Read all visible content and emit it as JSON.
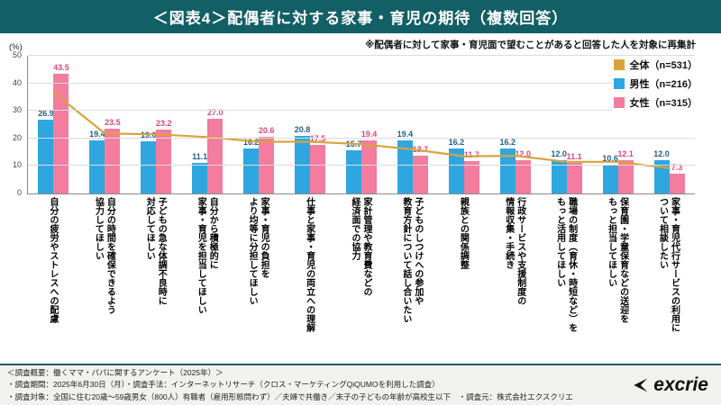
{
  "header": {
    "title": "＜図表4＞配偶者に対する家事・育児の期待（複数回答）"
  },
  "note": "※配偶者に対して家事・育児面で望むことがあると回答した人を対象に再集計",
  "y_axis": {
    "unit": "(%)",
    "ticks": [
      0,
      10,
      20,
      30,
      40,
      50
    ]
  },
  "legend": [
    {
      "label": "全体（n=531）",
      "color": "#d9a33c"
    },
    {
      "label": "男性（n=216）",
      "color": "#2ea7e0"
    },
    {
      "label": "女性（n=315）",
      "color": "#f47c9f"
    }
  ],
  "chart_data": {
    "type": "bar",
    "title": "＜図表4＞配偶者に対する家事・育児の期待（複数回答）",
    "ylabel": "(%)",
    "ylim": [
      0,
      50
    ],
    "grid": true,
    "legend_position": "top-right",
    "categories": [
      "自分の疲労やストレスへの配慮",
      "自分の時間を確保できるよう\n協力してほしい",
      "子どもの急な体調不良時に\n対応してほしい",
      "自分から積極的に\n家事・育児を担当してほしい",
      "家事・育児の負担を\nより均等に分担してほしい",
      "仕事と家事・育児の両立への理解",
      "家計管理や教育費などの\n経済面での協力",
      "子どものしつけへの参加や\n教育方針について話し合いたい",
      "親族との関係調整",
      "行政サービスや支援制度の\n情報収集・手続き",
      "職場の制度（育休・時短など）を\nもっと活用してほしい",
      "保育園・学童保育などの送迎を\nもっと担当してほしい",
      "家事・育児代行サービスの利用に\nついて相談したい"
    ],
    "series": [
      {
        "key": "total",
        "name": "全体（n=531）",
        "type": "line",
        "color": "#d9a33c",
        "values": [
          36.7,
          21.8,
          21.5,
          20.5,
          18.8,
          18.8,
          17.9,
          16.0,
          13.5,
          13.7,
          11.5,
          11.5,
          9.2
        ]
      },
      {
        "key": "male",
        "name": "男性（n=216）",
        "type": "bar",
        "color": "#2ea7e0",
        "label_color": "#235d8a",
        "values": [
          26.9,
          19.4,
          19.0,
          11.1,
          16.2,
          20.8,
          15.7,
          19.4,
          16.2,
          16.2,
          12.0,
          10.6,
          12.0
        ]
      },
      {
        "key": "female",
        "name": "女性（n=315）",
        "type": "bar",
        "color": "#f47c9f",
        "label_color": "#e0457b",
        "values": [
          43.5,
          23.5,
          23.2,
          27.0,
          20.6,
          17.5,
          19.4,
          13.7,
          11.7,
          12.0,
          11.1,
          12.1,
          7.3
        ]
      }
    ]
  },
  "footer": {
    "line1": "＜調査概要：働くママ・パパに関するアンケート（2025年）＞",
    "line2": "・調査期間：2025年6月30日（月）・調査手法：インターネットリサーチ（クロス・マーケティングQiQUMOを利用した調査）",
    "line3": "・調査対象：全国に住む20歳～59歳男女（800人）有職者（雇用形態問わず）／夫婦で共働き／末子の子どもの年齢が高校生以下　・調査元：株式会社エクスクリエ",
    "logo_text": "excrie"
  }
}
